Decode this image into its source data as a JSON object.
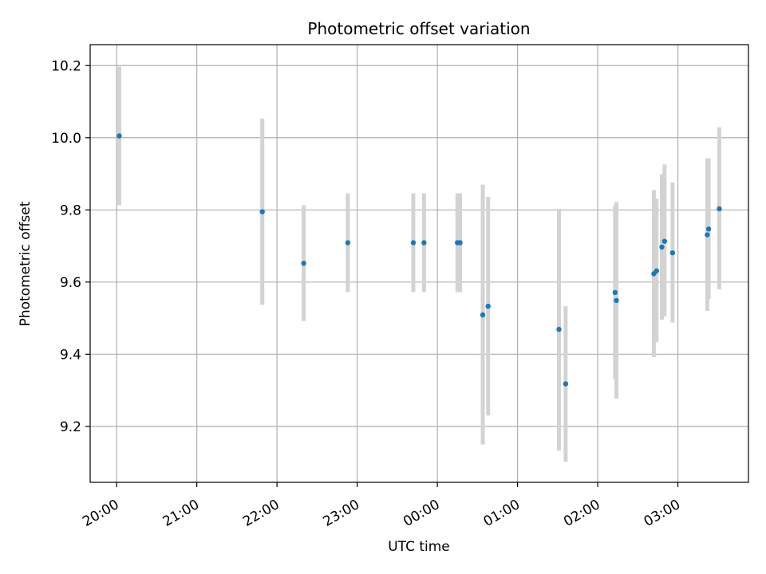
{
  "chart_data": {
    "type": "scatter",
    "title": "Photometric offset variation",
    "xlabel": "UTC time",
    "ylabel": "Photometric offset",
    "x_ticks": [
      "20:00",
      "21:00",
      "22:00",
      "23:00",
      "00:00",
      "01:00",
      "02:00",
      "03:00"
    ],
    "y_ticks": [
      "9.2",
      "9.4",
      "9.6",
      "9.8",
      "10.0",
      "10.2"
    ],
    "x_tick_values_hours": [
      0,
      1,
      2,
      3,
      4,
      5,
      6,
      7
    ],
    "y_tick_values": [
      9.2,
      9.4,
      9.6,
      9.8,
      10.0,
      10.2
    ],
    "xlim_hours_after_20": [
      -0.33,
      7.88
    ],
    "ylim": [
      9.045,
      10.258
    ],
    "grid": true,
    "point_color": "#1f77b4",
    "errorbar_color": "#d3d3d3",
    "series": [
      {
        "x": [
          "20:02",
          "21:49",
          "22:20",
          "22:53",
          "23:42",
          "23:50",
          "00:15",
          "00:17",
          "00:34",
          "00:38",
          "01:31",
          "01:36",
          "02:13",
          "02:14",
          "02:42",
          "02:44",
          "02:48",
          "02:50",
          "02:56",
          "03:22",
          "03:23",
          "03:31"
        ],
        "y": [
          10.005,
          9.795,
          9.652,
          9.709,
          9.709,
          9.709,
          9.709,
          9.709,
          9.509,
          9.533,
          9.469,
          9.318,
          9.571,
          9.549,
          9.623,
          9.631,
          9.697,
          9.713,
          9.681,
          9.731,
          9.747,
          9.803
        ],
        "err_low": [
          9.813,
          9.537,
          9.492,
          9.572,
          9.572,
          9.572,
          9.572,
          9.572,
          9.15,
          9.23,
          9.133,
          9.102,
          9.33,
          9.277,
          9.392,
          9.434,
          9.496,
          9.505,
          9.488,
          9.52,
          9.553,
          9.58
        ],
        "err_high": [
          10.197,
          10.053,
          9.813,
          9.846,
          9.846,
          9.846,
          9.846,
          9.846,
          9.87,
          9.836,
          9.803,
          9.533,
          9.813,
          9.822,
          9.855,
          9.831,
          9.899,
          9.926,
          9.876,
          9.943,
          9.943,
          10.029
        ]
      }
    ]
  }
}
